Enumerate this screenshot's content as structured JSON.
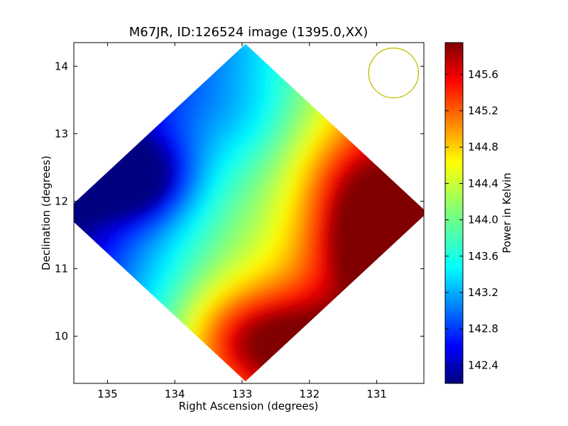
{
  "chart_data": {
    "type": "heatmap",
    "title": "M67JR, ID:126524 image (1395.0,XX)",
    "xlabel": "Right Ascension (degrees)",
    "ylabel": "Declination (degrees)",
    "xlim": [
      135.5,
      130.3
    ],
    "ylim": [
      9.3,
      14.35
    ],
    "x_ticks": [
      135,
      134,
      133,
      132,
      131
    ],
    "x_tick_labels": [
      "135",
      "134",
      "133",
      "132",
      "131"
    ],
    "y_ticks": [
      10,
      11,
      12,
      13,
      14
    ],
    "y_tick_labels": [
      "10",
      "11",
      "12",
      "13",
      "14"
    ],
    "center": [
      132.95,
      11.83
    ],
    "half_diagonal_deg": 2.5,
    "colorbar": {
      "label": "Power in Kelvin",
      "range": [
        142.2,
        145.95
      ],
      "ticks": [
        142.4,
        142.8,
        143.2,
        143.6,
        144.0,
        144.4,
        144.8,
        145.2,
        145.6
      ],
      "tick_labels": [
        "142.4",
        "142.8",
        "143.2",
        "143.6",
        "144.0",
        "144.4",
        "144.8",
        "145.2",
        "145.6"
      ],
      "colormap": "jet"
    },
    "beam_circle": {
      "ra": 130.75,
      "dec": 13.9,
      "radius_deg": 0.37,
      "color": "#bfbf00"
    },
    "grid": false
  }
}
